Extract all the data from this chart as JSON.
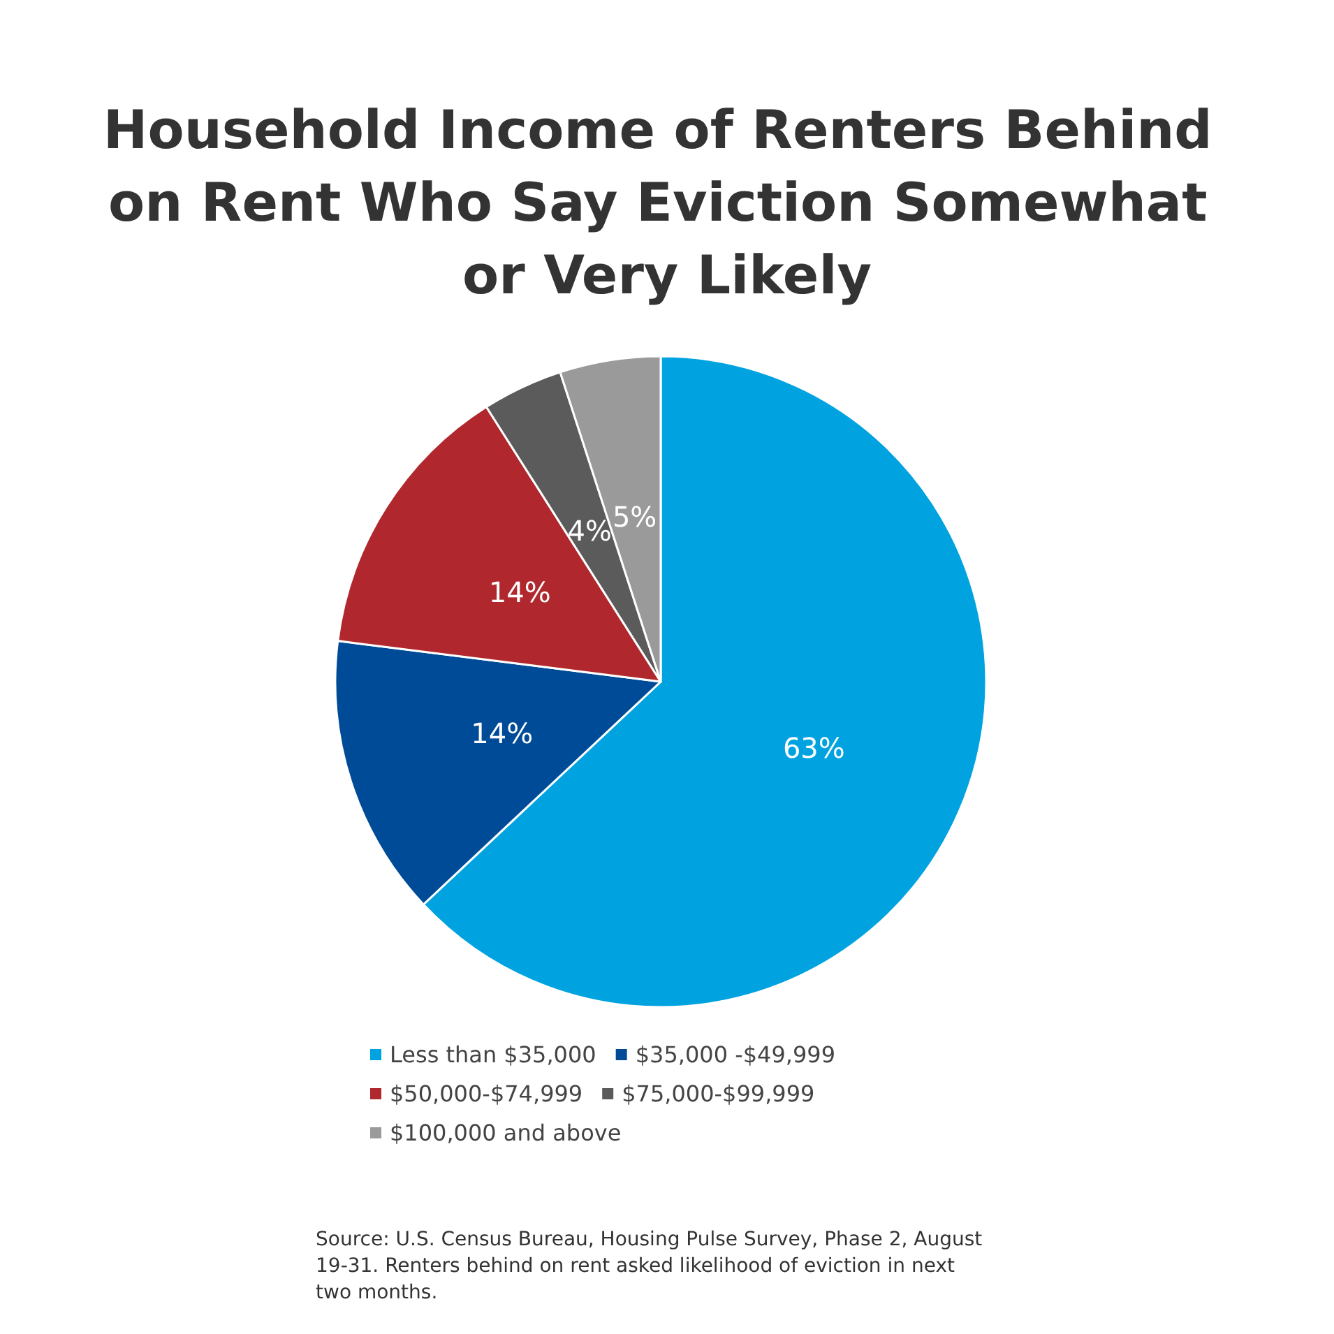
{
  "chart_data": {
    "type": "pie",
    "title": "Household Income of Renters Behind on Rent Who Say Eviction Somewhat or Very Likely",
    "categories": [
      "Less than $35,000",
      "$35,000 -$49,999",
      "$50,000-$74,999",
      "$75,000-$99,999",
      "$100,000 and above"
    ],
    "values": [
      63,
      14,
      14,
      4,
      5
    ],
    "colors": [
      "#00a3e0",
      "#004b98",
      "#b0282d",
      "#5b5b5b",
      "#9a9a9a"
    ],
    "value_labels": [
      "63%",
      "14%",
      "14%",
      "4%",
      "5%"
    ],
    "legend": "bottom",
    "annotations": [
      "Source: U.S. Census Bureau, Housing Pulse Survey, Phase 2, August 19-31. Renters behind on rent asked likelihood of eviction in next two months."
    ]
  }
}
